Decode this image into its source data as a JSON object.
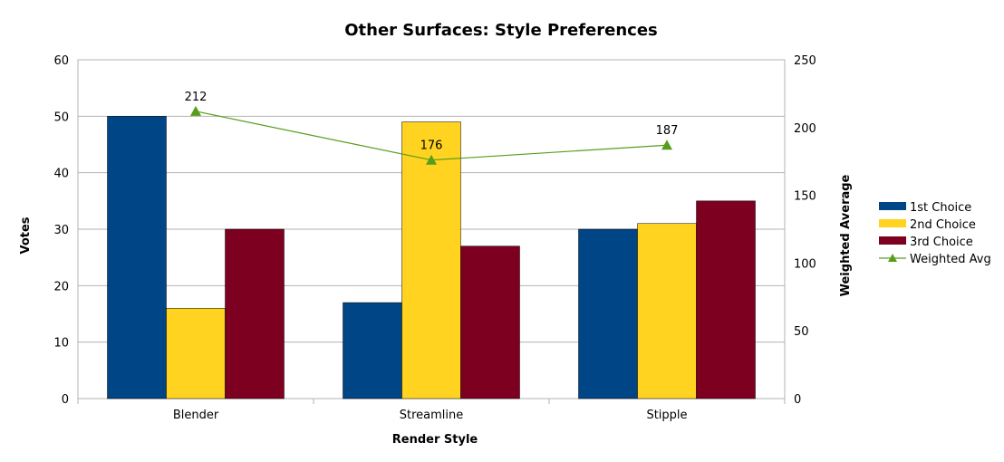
{
  "chart_data": {
    "type": "bar",
    "title": "Other Surfaces: Style Preferences",
    "xlabel": "Render Style",
    "ylabel": "Votes",
    "y2label": "Weighted Average",
    "categories": [
      "Blender",
      "Streamline",
      "Stipple"
    ],
    "ylim": [
      0,
      60
    ],
    "yticks": [
      0,
      10,
      20,
      30,
      40,
      50,
      60
    ],
    "y2lim": [
      0,
      250
    ],
    "y2ticks": [
      0,
      50,
      100,
      150,
      200,
      250
    ],
    "grid": true,
    "legend_position": "right",
    "series": [
      {
        "name": "1st Choice",
        "type": "bar",
        "axis": "left",
        "color": "#004586",
        "values": [
          50,
          17,
          30
        ]
      },
      {
        "name": "2nd Choice",
        "type": "bar",
        "axis": "left",
        "color": "#ffd320",
        "values": [
          16,
          49,
          31
        ]
      },
      {
        "name": "3rd Choice",
        "type": "bar",
        "axis": "left",
        "color": "#7e0021",
        "values": [
          30,
          27,
          35
        ]
      },
      {
        "name": "Weighted Avg",
        "type": "line",
        "axis": "right",
        "color": "#579d1c",
        "marker": "triangle",
        "values": [
          212,
          176,
          187
        ],
        "labels": [
          "212",
          "176",
          "187"
        ]
      }
    ]
  }
}
